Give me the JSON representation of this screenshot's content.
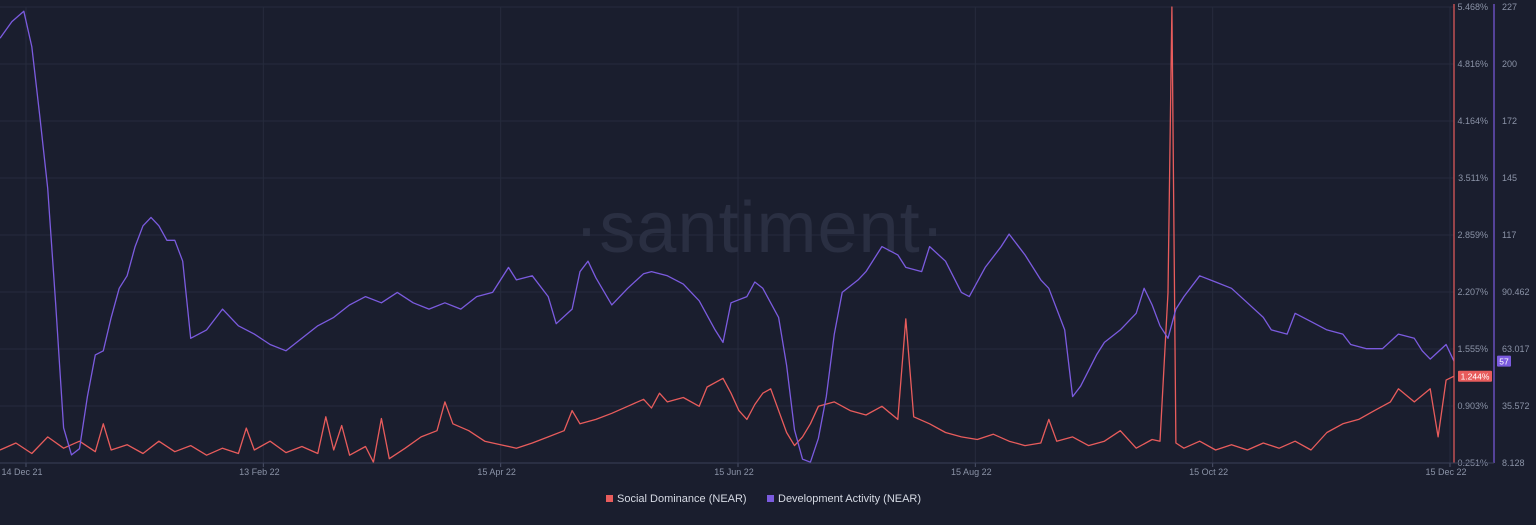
{
  "watermark": "·santiment·",
  "chart_data": {
    "type": "line",
    "x_ticks": [
      "14 Dec 21",
      "13 Feb 22",
      "15 Apr 22",
      "15 Jun 22",
      "15 Aug 22",
      "15 Oct 22",
      "15 Dec 22"
    ],
    "x_range": [
      0,
      366
    ],
    "grid": true,
    "legend_position": "bottom-center",
    "axes": {
      "left": {
        "ticks": [
          "5.468%",
          "4.816%",
          "4.164%",
          "3.511%",
          "2.859%",
          "2.207%",
          "1.555%",
          "0.903%",
          "0.251%"
        ],
        "range": [
          0.251,
          5.468
        ],
        "color": "#e85c5c",
        "current_value": "1.244%"
      },
      "right": {
        "ticks": [
          "227",
          "200",
          "172",
          "145",
          "117",
          "90.462",
          "63.017",
          "35.572",
          "8.128"
        ],
        "range": [
          8.128,
          227
        ],
        "color": "#7b5bdf",
        "current_value": "57"
      }
    },
    "series": [
      {
        "name": "Social Dominance (NEAR)",
        "color": "#e85c5c",
        "axis": "left",
        "points": [
          [
            0,
            0.4
          ],
          [
            4,
            0.48
          ],
          [
            8,
            0.36
          ],
          [
            12,
            0.55
          ],
          [
            16,
            0.42
          ],
          [
            20,
            0.5
          ],
          [
            24,
            0.38
          ],
          [
            26,
            0.7
          ],
          [
            28,
            0.4
          ],
          [
            32,
            0.46
          ],
          [
            36,
            0.36
          ],
          [
            40,
            0.5
          ],
          [
            44,
            0.38
          ],
          [
            48,
            0.45
          ],
          [
            52,
            0.34
          ],
          [
            56,
            0.42
          ],
          [
            60,
            0.36
          ],
          [
            62,
            0.65
          ],
          [
            64,
            0.4
          ],
          [
            68,
            0.5
          ],
          [
            72,
            0.37
          ],
          [
            76,
            0.44
          ],
          [
            80,
            0.36
          ],
          [
            82,
            0.78
          ],
          [
            84,
            0.4
          ],
          [
            86,
            0.68
          ],
          [
            88,
            0.34
          ],
          [
            92,
            0.44
          ],
          [
            94,
            0.26
          ],
          [
            96,
            0.76
          ],
          [
            98,
            0.3
          ],
          [
            102,
            0.42
          ],
          [
            106,
            0.55
          ],
          [
            110,
            0.62
          ],
          [
            112,
            0.95
          ],
          [
            114,
            0.7
          ],
          [
            118,
            0.62
          ],
          [
            122,
            0.5
          ],
          [
            126,
            0.46
          ],
          [
            130,
            0.42
          ],
          [
            134,
            0.48
          ],
          [
            138,
            0.55
          ],
          [
            142,
            0.62
          ],
          [
            144,
            0.85
          ],
          [
            146,
            0.7
          ],
          [
            150,
            0.75
          ],
          [
            154,
            0.82
          ],
          [
            158,
            0.9
          ],
          [
            162,
            0.98
          ],
          [
            164,
            0.88
          ],
          [
            166,
            1.05
          ],
          [
            168,
            0.95
          ],
          [
            172,
            1.0
          ],
          [
            176,
            0.9
          ],
          [
            178,
            1.12
          ],
          [
            182,
            1.22
          ],
          [
            184,
            1.05
          ],
          [
            186,
            0.85
          ],
          [
            188,
            0.75
          ],
          [
            190,
            0.92
          ],
          [
            192,
            1.05
          ],
          [
            194,
            1.1
          ],
          [
            198,
            0.6
          ],
          [
            200,
            0.45
          ],
          [
            202,
            0.55
          ],
          [
            204,
            0.7
          ],
          [
            206,
            0.9
          ],
          [
            210,
            0.95
          ],
          [
            214,
            0.85
          ],
          [
            218,
            0.8
          ],
          [
            222,
            0.9
          ],
          [
            226,
            0.75
          ],
          [
            228,
            1.9
          ],
          [
            230,
            0.78
          ],
          [
            234,
            0.7
          ],
          [
            238,
            0.6
          ],
          [
            242,
            0.55
          ],
          [
            246,
            0.52
          ],
          [
            250,
            0.58
          ],
          [
            254,
            0.5
          ],
          [
            258,
            0.45
          ],
          [
            262,
            0.48
          ],
          [
            264,
            0.75
          ],
          [
            266,
            0.5
          ],
          [
            270,
            0.55
          ],
          [
            274,
            0.45
          ],
          [
            278,
            0.5
          ],
          [
            282,
            0.62
          ],
          [
            286,
            0.42
          ],
          [
            290,
            0.52
          ],
          [
            292,
            0.5
          ],
          [
            294,
            2.2
          ],
          [
            295,
            5.468
          ],
          [
            296,
            0.48
          ],
          [
            298,
            0.42
          ],
          [
            302,
            0.5
          ],
          [
            306,
            0.4
          ],
          [
            310,
            0.46
          ],
          [
            314,
            0.4
          ],
          [
            318,
            0.48
          ],
          [
            322,
            0.42
          ],
          [
            326,
            0.5
          ],
          [
            330,
            0.4
          ],
          [
            334,
            0.6
          ],
          [
            338,
            0.7
          ],
          [
            342,
            0.75
          ],
          [
            346,
            0.85
          ],
          [
            350,
            0.95
          ],
          [
            352,
            1.1
          ],
          [
            356,
            0.95
          ],
          [
            360,
            1.1
          ],
          [
            362,
            0.55
          ],
          [
            364,
            1.2
          ],
          [
            366,
            1.244
          ]
        ]
      },
      {
        "name": "Development Activity (NEAR)",
        "color": "#7b5bdf",
        "axis": "right",
        "points": [
          [
            0,
            212
          ],
          [
            3,
            220
          ],
          [
            6,
            225
          ],
          [
            8,
            208
          ],
          [
            10,
            175
          ],
          [
            12,
            140
          ],
          [
            14,
            85
          ],
          [
            16,
            25
          ],
          [
            18,
            12
          ],
          [
            20,
            15
          ],
          [
            22,
            40
          ],
          [
            24,
            60
          ],
          [
            26,
            62
          ],
          [
            28,
            78
          ],
          [
            30,
            92
          ],
          [
            32,
            98
          ],
          [
            34,
            112
          ],
          [
            36,
            122
          ],
          [
            38,
            126
          ],
          [
            40,
            122
          ],
          [
            42,
            115
          ],
          [
            44,
            115
          ],
          [
            46,
            105
          ],
          [
            48,
            68
          ],
          [
            52,
            72
          ],
          [
            56,
            82
          ],
          [
            60,
            74
          ],
          [
            64,
            70
          ],
          [
            68,
            65
          ],
          [
            72,
            62
          ],
          [
            76,
            68
          ],
          [
            80,
            74
          ],
          [
            84,
            78
          ],
          [
            88,
            84
          ],
          [
            92,
            88
          ],
          [
            96,
            85
          ],
          [
            100,
            90
          ],
          [
            104,
            85
          ],
          [
            108,
            82
          ],
          [
            112,
            85
          ],
          [
            116,
            82
          ],
          [
            120,
            88
          ],
          [
            124,
            90
          ],
          [
            128,
            102
          ],
          [
            130,
            96
          ],
          [
            134,
            98
          ],
          [
            138,
            88
          ],
          [
            140,
            75
          ],
          [
            144,
            82
          ],
          [
            146,
            100
          ],
          [
            148,
            105
          ],
          [
            150,
            97
          ],
          [
            154,
            84
          ],
          [
            158,
            92
          ],
          [
            162,
            99
          ],
          [
            164,
            100
          ],
          [
            168,
            98
          ],
          [
            172,
            94
          ],
          [
            176,
            86
          ],
          [
            180,
            72
          ],
          [
            182,
            66
          ],
          [
            184,
            85
          ],
          [
            188,
            88
          ],
          [
            190,
            95
          ],
          [
            192,
            92
          ],
          [
            196,
            78
          ],
          [
            198,
            55
          ],
          [
            200,
            24
          ],
          [
            202,
            10
          ],
          [
            204,
            8.5
          ],
          [
            206,
            20
          ],
          [
            208,
            40
          ],
          [
            210,
            70
          ],
          [
            212,
            90
          ],
          [
            216,
            96
          ],
          [
            218,
            100
          ],
          [
            222,
            112
          ],
          [
            226,
            108
          ],
          [
            228,
            102
          ],
          [
            232,
            100
          ],
          [
            234,
            112
          ],
          [
            238,
            105
          ],
          [
            242,
            90
          ],
          [
            244,
            88
          ],
          [
            248,
            102
          ],
          [
            252,
            112
          ],
          [
            254,
            118
          ],
          [
            258,
            108
          ],
          [
            262,
            96
          ],
          [
            264,
            92
          ],
          [
            268,
            72
          ],
          [
            270,
            40
          ],
          [
            272,
            45
          ],
          [
            276,
            60
          ],
          [
            278,
            66
          ],
          [
            282,
            72
          ],
          [
            286,
            80
          ],
          [
            288,
            92
          ],
          [
            290,
            84
          ],
          [
            292,
            74
          ],
          [
            294,
            68
          ],
          [
            296,
            82
          ],
          [
            298,
            88
          ],
          [
            302,
            98
          ],
          [
            306,
            95
          ],
          [
            310,
            92
          ],
          [
            314,
            85
          ],
          [
            318,
            78
          ],
          [
            320,
            72
          ],
          [
            324,
            70
          ],
          [
            326,
            80
          ],
          [
            330,
            76
          ],
          [
            334,
            72
          ],
          [
            338,
            70
          ],
          [
            340,
            65
          ],
          [
            344,
            63
          ],
          [
            348,
            63
          ],
          [
            352,
            70
          ],
          [
            356,
            68
          ],
          [
            358,
            62
          ],
          [
            360,
            58
          ],
          [
            364,
            65
          ],
          [
            366,
            57
          ]
        ]
      }
    ]
  }
}
